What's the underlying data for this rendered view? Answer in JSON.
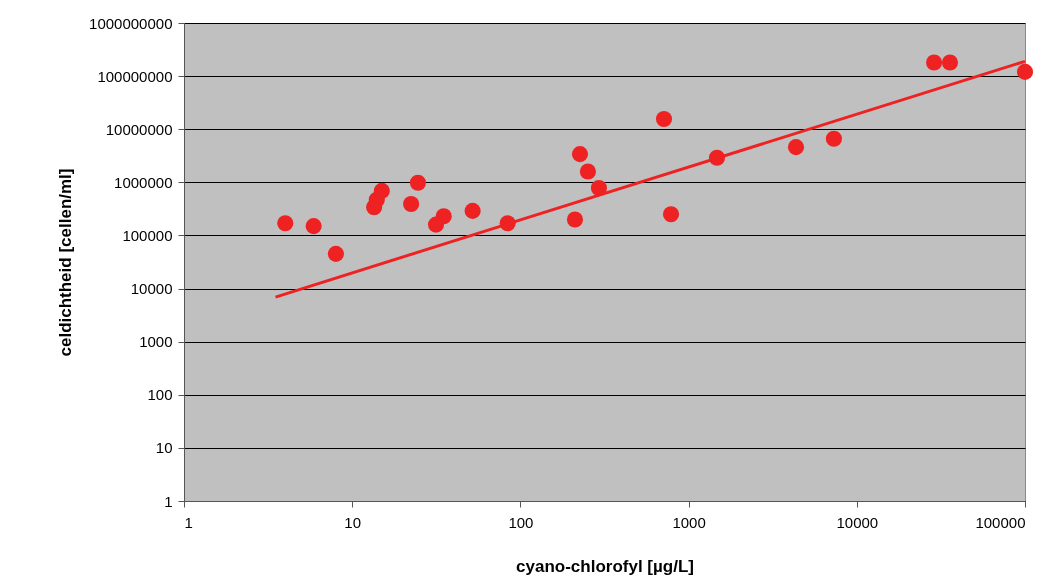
{
  "chart_data": {
    "type": "scatter",
    "xlabel": "cyano-chlorofyl [µg/L]",
    "ylabel": "celdichtheid [cellen/ml]",
    "log": "xy",
    "grid": "y",
    "marker": "circle",
    "xlim": [
      1,
      100000
    ],
    "xticks": [
      1,
      10,
      100,
      1000,
      10000,
      100000
    ],
    "ylim": [
      1,
      1000000000
    ],
    "yticks": [
      1,
      10,
      100,
      1000,
      10000,
      100000,
      1000000,
      10000000,
      100000000,
      1000000000
    ],
    "series": [
      {
        "color": "#ee2222",
        "x": [
          4.0,
          5.9,
          8.0,
          13.5,
          14,
          15,
          24.6,
          22.4,
          35,
          31.5,
          52,
          84,
          211,
          226,
          252,
          293,
          714,
          786,
          1475,
          4350,
          7310,
          28800,
          35800,
          100000
        ],
        "values": [
          170000,
          150000,
          45000,
          340000,
          470000,
          690000,
          980000,
          390000,
          230000,
          160000,
          290000,
          170000,
          200000,
          3400000,
          1600000,
          780000,
          15600000,
          250000,
          2900000,
          4600000,
          6600000,
          180000000,
          180000000,
          120000000
        ]
      },
      {
        "type": "line",
        "marker": "none",
        "color": "#ee2222",
        "x": [
          3.5,
          100,
          100000
        ],
        "values": [
          6900,
          196000,
          190000000
        ]
      }
    ]
  }
}
